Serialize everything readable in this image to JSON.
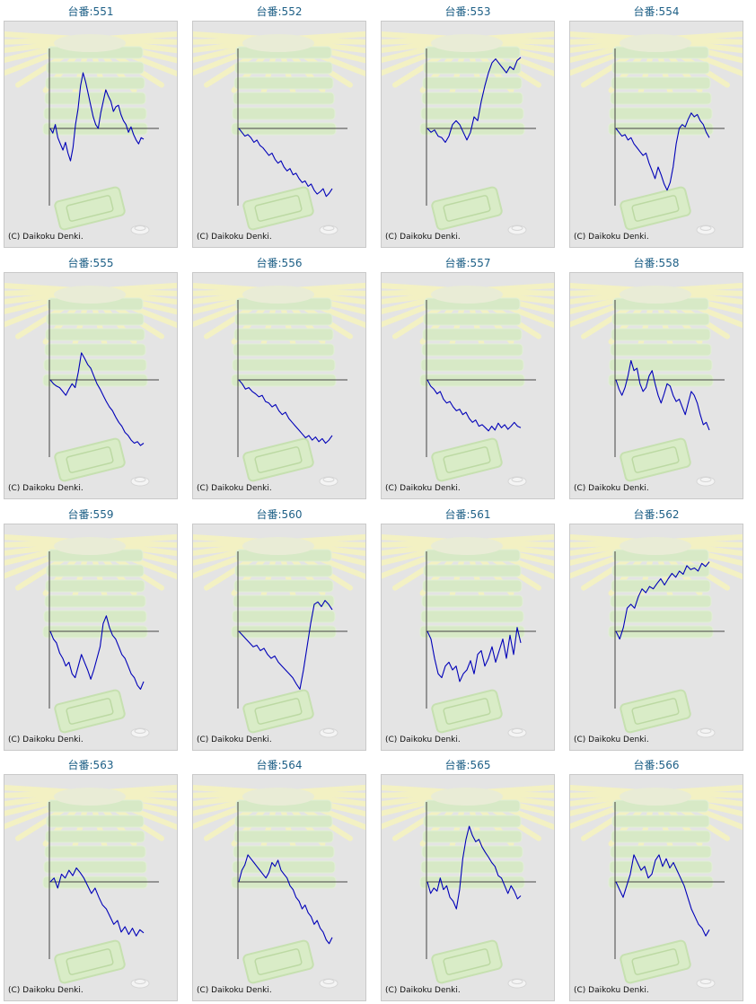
{
  "copyright": "(C) Daikoku Denki.",
  "colors": {
    "title": "#1d5f86",
    "line": "#0000b8",
    "axis": "#444444",
    "panel_bg": "#e4e4e4"
  },
  "chart_data": [
    {
      "type": "line",
      "title": "台番:551",
      "y": [
        0,
        -0.06,
        0.05,
        -0.12,
        -0.2,
        -0.28,
        -0.18,
        -0.32,
        -0.42,
        -0.25,
        0.05,
        0.25,
        0.55,
        0.72,
        0.6,
        0.45,
        0.3,
        0.15,
        0.05,
        0,
        0.2,
        0.35,
        0.5,
        0.42,
        0.35,
        0.22,
        0.28,
        0.3,
        0.18,
        0.1,
        0.05,
        -0.05,
        0.02,
        -0.08,
        -0.15,
        -0.2,
        -0.12,
        -0.14
      ]
    },
    {
      "type": "line",
      "title": "台番:552",
      "y": [
        0,
        -0.05,
        -0.1,
        -0.08,
        -0.12,
        -0.18,
        -0.15,
        -0.22,
        -0.25,
        -0.3,
        -0.35,
        -0.32,
        -0.4,
        -0.45,
        -0.42,
        -0.5,
        -0.55,
        -0.52,
        -0.6,
        -0.58,
        -0.65,
        -0.7,
        -0.68,
        -0.75,
        -0.72,
        -0.8,
        -0.85,
        -0.82,
        -0.78,
        -0.88,
        -0.84,
        -0.78
      ]
    },
    {
      "type": "line",
      "title": "台番:553",
      "y": [
        0,
        -0.05,
        -0.02,
        -0.1,
        -0.12,
        -0.18,
        -0.1,
        0.05,
        0.1,
        0.05,
        -0.05,
        -0.15,
        -0.05,
        0.15,
        0.1,
        0.35,
        0.55,
        0.72,
        0.85,
        0.9,
        0.84,
        0.78,
        0.72,
        0.8,
        0.76,
        0.88,
        0.92
      ]
    },
    {
      "type": "line",
      "title": "台番:554",
      "y": [
        0,
        -0.05,
        -0.1,
        -0.08,
        -0.15,
        -0.12,
        -0.2,
        -0.25,
        -0.3,
        -0.35,
        -0.32,
        -0.45,
        -0.55,
        -0.65,
        -0.5,
        -0.6,
        -0.72,
        -0.8,
        -0.7,
        -0.5,
        -0.2,
        0,
        0.05,
        0.02,
        0.12,
        0.2,
        0.15,
        0.18,
        0.1,
        0.05,
        -0.05,
        -0.12
      ]
    },
    {
      "type": "line",
      "title": "台番:555",
      "y": [
        0,
        -0.05,
        -0.08,
        -0.1,
        -0.15,
        -0.2,
        -0.12,
        -0.05,
        -0.1,
        0.1,
        0.35,
        0.28,
        0.2,
        0.15,
        0.05,
        -0.05,
        -0.12,
        -0.2,
        -0.28,
        -0.35,
        -0.4,
        -0.48,
        -0.55,
        -0.6,
        -0.68,
        -0.72,
        -0.78,
        -0.82,
        -0.8,
        -0.85,
        -0.82
      ]
    },
    {
      "type": "line",
      "title": "台番:556",
      "y": [
        0,
        -0.05,
        -0.12,
        -0.1,
        -0.15,
        -0.18,
        -0.22,
        -0.2,
        -0.28,
        -0.3,
        -0.35,
        -0.32,
        -0.4,
        -0.45,
        -0.42,
        -0.5,
        -0.55,
        -0.6,
        -0.65,
        -0.7,
        -0.75,
        -0.72,
        -0.78,
        -0.74,
        -0.8,
        -0.76,
        -0.82,
        -0.78,
        -0.72
      ]
    },
    {
      "type": "line",
      "title": "台番:557",
      "y": [
        0,
        -0.08,
        -0.12,
        -0.18,
        -0.15,
        -0.25,
        -0.3,
        -0.28,
        -0.35,
        -0.4,
        -0.38,
        -0.45,
        -0.42,
        -0.5,
        -0.55,
        -0.52,
        -0.6,
        -0.58,
        -0.62,
        -0.66,
        -0.6,
        -0.65,
        -0.56,
        -0.62,
        -0.58,
        -0.64,
        -0.6,
        -0.55,
        -0.6,
        -0.62
      ]
    },
    {
      "type": "line",
      "title": "台番:558",
      "y": [
        0,
        -0.12,
        -0.2,
        -0.1,
        0.05,
        0.25,
        0.12,
        0.15,
        -0.05,
        -0.15,
        -0.1,
        0.05,
        0.12,
        -0.05,
        -0.2,
        -0.3,
        -0.18,
        -0.05,
        -0.08,
        -0.2,
        -0.28,
        -0.25,
        -0.35,
        -0.45,
        -0.3,
        -0.15,
        -0.2,
        -0.3,
        -0.45,
        -0.58,
        -0.55,
        -0.65
      ]
    },
    {
      "type": "line",
      "title": "台番:559",
      "y": [
        0,
        -0.1,
        -0.15,
        -0.28,
        -0.35,
        -0.45,
        -0.4,
        -0.55,
        -0.6,
        -0.45,
        -0.3,
        -0.4,
        -0.5,
        -0.62,
        -0.5,
        -0.35,
        -0.2,
        0.1,
        0.2,
        0.05,
        -0.05,
        -0.1,
        -0.2,
        -0.3,
        -0.35,
        -0.45,
        -0.55,
        -0.6,
        -0.7,
        -0.75,
        -0.65
      ]
    },
    {
      "type": "line",
      "title": "台番:560",
      "y": [
        0,
        -0.05,
        -0.1,
        -0.15,
        -0.2,
        -0.18,
        -0.25,
        -0.22,
        -0.3,
        -0.35,
        -0.32,
        -0.4,
        -0.45,
        -0.5,
        -0.55,
        -0.6,
        -0.68,
        -0.75,
        -0.5,
        -0.2,
        0.1,
        0.35,
        0.38,
        0.32,
        0.4,
        0.35,
        0.28
      ]
    },
    {
      "type": "line",
      "title": "台番:561",
      "y": [
        0,
        -0.1,
        -0.35,
        -0.55,
        -0.6,
        -0.45,
        -0.4,
        -0.5,
        -0.45,
        -0.65,
        -0.55,
        -0.5,
        -0.38,
        -0.55,
        -0.3,
        -0.25,
        -0.45,
        -0.35,
        -0.2,
        -0.4,
        -0.25,
        -0.1,
        -0.35,
        -0.05,
        -0.3,
        0.05,
        -0.15
      ]
    },
    {
      "type": "line",
      "title": "台番:562",
      "y": [
        0,
        -0.1,
        0.05,
        0.3,
        0.35,
        0.3,
        0.45,
        0.55,
        0.5,
        0.58,
        0.55,
        0.62,
        0.68,
        0.6,
        0.68,
        0.75,
        0.7,
        0.78,
        0.74,
        0.85,
        0.8,
        0.82,
        0.78,
        0.88,
        0.84,
        0.9
      ]
    },
    {
      "type": "line",
      "title": "台番:563",
      "y": [
        0,
        0.05,
        -0.08,
        0.1,
        0.05,
        0.15,
        0.08,
        0.18,
        0.12,
        0.05,
        -0.05,
        -0.15,
        -0.08,
        -0.2,
        -0.3,
        -0.35,
        -0.45,
        -0.55,
        -0.5,
        -0.65,
        -0.58,
        -0.68,
        -0.6,
        -0.7,
        -0.62,
        -0.66
      ]
    },
    {
      "type": "line",
      "title": "台番:564",
      "y": [
        0,
        0.15,
        0.22,
        0.35,
        0.3,
        0.25,
        0.2,
        0.15,
        0.1,
        0.05,
        0.12,
        0.25,
        0.2,
        0.28,
        0.15,
        0.1,
        0.05,
        -0.05,
        -0.1,
        -0.2,
        -0.25,
        -0.35,
        -0.3,
        -0.4,
        -0.45,
        -0.55,
        -0.5,
        -0.6,
        -0.65,
        -0.75,
        -0.8,
        -0.72
      ]
    },
    {
      "type": "line",
      "title": "台番:565",
      "y": [
        0,
        -0.15,
        -0.08,
        -0.12,
        0.05,
        -0.1,
        -0.05,
        -0.2,
        -0.25,
        -0.35,
        -0.1,
        0.3,
        0.55,
        0.72,
        0.6,
        0.52,
        0.55,
        0.45,
        0.38,
        0.32,
        0.25,
        0.2,
        0.08,
        0.05,
        -0.05,
        -0.15,
        -0.05,
        -0.12,
        -0.22,
        -0.18
      ]
    },
    {
      "type": "line",
      "title": "台番:566",
      "y": [
        0,
        -0.1,
        -0.2,
        -0.05,
        0.1,
        0.35,
        0.25,
        0.15,
        0.2,
        0.05,
        0.1,
        0.28,
        0.35,
        0.2,
        0.3,
        0.18,
        0.25,
        0.15,
        0.05,
        -0.05,
        -0.2,
        -0.35,
        -0.45,
        -0.55,
        -0.6,
        -0.7,
        -0.62
      ]
    }
  ]
}
